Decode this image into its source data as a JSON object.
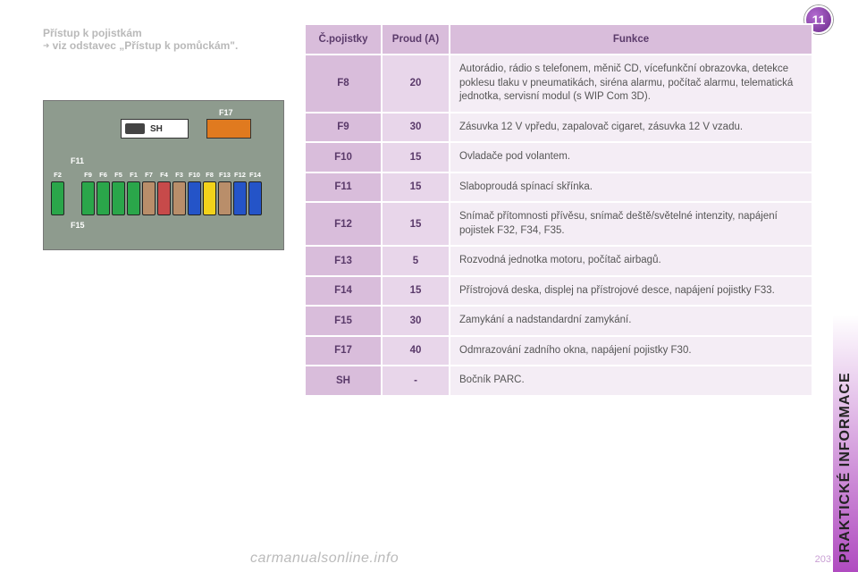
{
  "badge": "11",
  "side_text": "PRAKTICKÉ INFORMACE",
  "heading": {
    "title": "Přístup k pojistkám",
    "arrow": "➜",
    "sub": "viz odstavec „Přístup k pomůckám\"."
  },
  "diagram": {
    "sh_label": "SH",
    "f17_label": "F17",
    "f11_label": "F11",
    "f15_label": "F15",
    "fuses": [
      {
        "label": "F2",
        "color": "#2aa64a",
        "short": false
      },
      {
        "label": "",
        "color": "transparent",
        "short": true,
        "gap": true
      },
      {
        "label": "F9",
        "color": "#2aa64a",
        "short": false
      },
      {
        "label": "F6",
        "color": "#2aa64a",
        "short": false
      },
      {
        "label": "F5",
        "color": "#2aa64a",
        "short": false
      },
      {
        "label": "F1",
        "color": "#2aa64a",
        "short": false
      },
      {
        "label": "F7",
        "color": "#b98e6a",
        "short": false
      },
      {
        "label": "F4",
        "color": "#c74a4a",
        "short": false
      },
      {
        "label": "F3",
        "color": "#b98e6a",
        "short": false
      },
      {
        "label": "F10",
        "color": "#2454c8",
        "short": false
      },
      {
        "label": "F8",
        "color": "#f2d21a",
        "short": false
      },
      {
        "label": "F13",
        "color": "#b98e6a",
        "short": false
      },
      {
        "label": "F12",
        "color": "#2454c8",
        "short": false
      },
      {
        "label": "F14",
        "color": "#2454c8",
        "short": false
      }
    ]
  },
  "table": {
    "headers": [
      "Č.pojistky",
      "Proud (A)",
      "Funkce"
    ],
    "rows": [
      {
        "id": "F8",
        "amp": "20",
        "func": "Autorádio, rádio s telefonem, měnič CD, vícefunkční obrazovka, detekce poklesu tlaku v pneumatikách, siréna alarmu, počítač alarmu, telematická jednotka, servisní modul (s WIP Com 3D)."
      },
      {
        "id": "F9",
        "amp": "30",
        "func": "Zásuvka 12 V vpředu, zapalovač cigaret, zásuvka 12 V vzadu."
      },
      {
        "id": "F10",
        "amp": "15",
        "func": "Ovladače pod volantem."
      },
      {
        "id": "F11",
        "amp": "15",
        "func": "Slaboproudá spínací skřínka."
      },
      {
        "id": "F12",
        "amp": "15",
        "func": "Snímač přítomnosti přívěsu, snímač deště/světelné intenzity, napájení pojistek F32, F34, F35."
      },
      {
        "id": "F13",
        "amp": "5",
        "func": "Rozvodná jednotka motoru, počítač airbagů."
      },
      {
        "id": "F14",
        "amp": "15",
        "func": "Přístrojová deska, displej na přístrojové desce, napájení pojistky F33."
      },
      {
        "id": "F15",
        "amp": "30",
        "func": "Zamykání a nadstandardní zamykání."
      },
      {
        "id": "F17",
        "amp": "40",
        "func": "Odmrazování zadního okna, napájení pojistky F30."
      },
      {
        "id": "SH",
        "amp": "-",
        "func": "Bočník PARC."
      }
    ],
    "header_bg": "#d9bddb",
    "c1_bg": "#d9bddb",
    "c2_bg": "#e8d6ea",
    "c3_bg": "#f4edf5"
  },
  "footer": "carmanualsonline.info",
  "pagenum": "203"
}
